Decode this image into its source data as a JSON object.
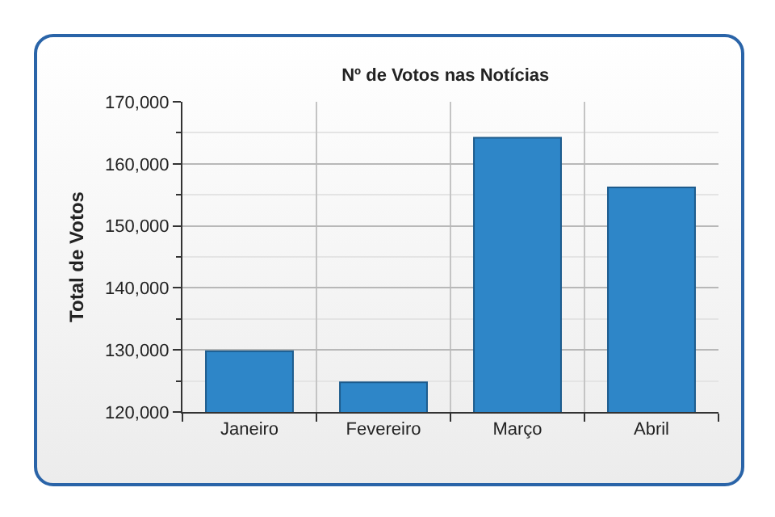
{
  "chart_data": {
    "type": "bar",
    "title": "Nº de Votos nas Notícias",
    "ylabel": "Total de Votos",
    "categories": [
      "Janeiro",
      "Fevereiro",
      "Março",
      "Abril"
    ],
    "values": [
      129800,
      124800,
      164200,
      156200
    ],
    "color": "#2e86c8",
    "ylim": [
      120000,
      170000
    ],
    "yticks": [
      {
        "value": 120000,
        "label": "120,000"
      },
      {
        "value": 130000,
        "label": "130,000"
      },
      {
        "value": 140000,
        "label": "140,000"
      },
      {
        "value": 150000,
        "label": "150,000"
      },
      {
        "value": 160000,
        "label": "160,000"
      },
      {
        "value": 170000,
        "label": "170,000"
      }
    ],
    "grid": true
  }
}
